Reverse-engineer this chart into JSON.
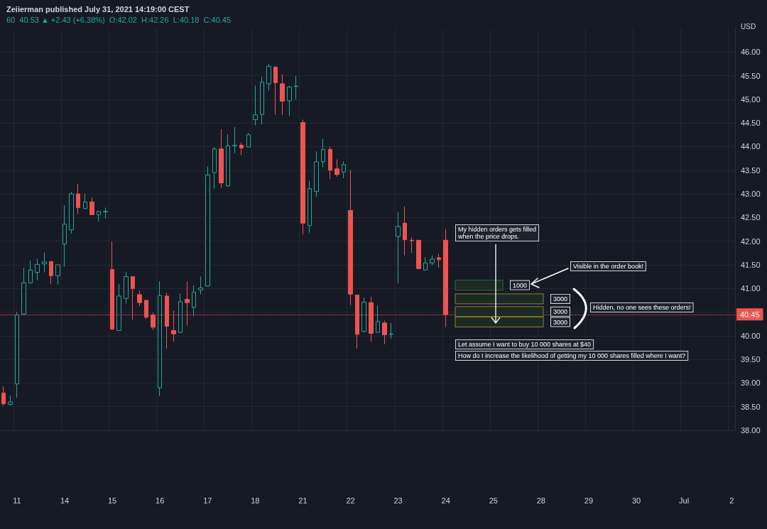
{
  "chart_data": {
    "type": "candlestick",
    "title": "Zeiierman published July 31, 2021 14:19:00 CEST",
    "subtitle": "60  40.53 ▲ +2.43 (+6.38%)  O:42.02  H:42.26  L:40.18  C:40.45",
    "ylabel": "USD",
    "categories": [
      null,
      null,
      "11",
      null,
      null,
      null,
      null,
      null,
      null,
      "14",
      null,
      null,
      null,
      null,
      null,
      null,
      "15",
      null,
      null,
      null,
      null,
      null,
      null,
      "16",
      null,
      null,
      null,
      null,
      null,
      null,
      "17",
      null,
      null,
      null,
      null,
      null,
      null,
      "18",
      null,
      null,
      null,
      null,
      null,
      null,
      "21",
      null,
      null,
      null,
      null,
      null,
      null,
      "22",
      null,
      null,
      null,
      null,
      null,
      null,
      "23",
      null,
      null,
      null,
      null,
      null,
      null,
      "24",
      null,
      null,
      null,
      null,
      null,
      null,
      "25",
      null,
      null,
      null,
      null,
      null,
      null,
      "28",
      null,
      null,
      null,
      null,
      null,
      null,
      "29",
      null,
      null,
      null,
      null,
      null,
      null,
      "30",
      null,
      null,
      null,
      null,
      null,
      null,
      "Jul",
      null,
      null,
      null,
      null,
      null,
      null,
      "2"
    ],
    "ohlc": [
      [
        38.79,
        38.93,
        38.53,
        38.56
      ],
      [
        38.55,
        38.74,
        38.52,
        38.6
      ],
      [
        38.98,
        40.5,
        38.69,
        40.44
      ],
      [
        40.46,
        41.44,
        40.44,
        41.12
      ],
      [
        41.12,
        41.59,
        41.1,
        41.39
      ],
      [
        41.34,
        41.63,
        41.17,
        41.51
      ],
      [
        41.52,
        41.76,
        41.34,
        41.56
      ],
      [
        41.57,
        41.57,
        41.09,
        41.27
      ],
      [
        41.27,
        41.5,
        41.08,
        41.5
      ],
      [
        41.94,
        42.76,
        41.46,
        42.36
      ],
      [
        42.24,
        43.04,
        42.16,
        43.0
      ],
      [
        43.0,
        43.21,
        42.58,
        42.71
      ],
      [
        42.69,
        43.01,
        42.69,
        42.83
      ],
      [
        42.83,
        42.92,
        42.56,
        42.56
      ],
      [
        42.56,
        42.63,
        42.41,
        42.63
      ],
      [
        42.62,
        42.71,
        42.48,
        42.63
      ],
      [
        41.4,
        41.99,
        40.12,
        40.14
      ],
      [
        40.11,
        41.09,
        40.1,
        40.84
      ],
      [
        40.79,
        41.35,
        40.68,
        41.25
      ],
      [
        41.25,
        41.25,
        40.34,
        41.0
      ],
      [
        40.87,
        40.95,
        40.63,
        40.7
      ],
      [
        40.75,
        40.75,
        40.35,
        40.39
      ],
      [
        40.44,
        40.49,
        40.12,
        40.18
      ],
      [
        38.9,
        41.15,
        38.72,
        40.85
      ],
      [
        40.84,
        40.91,
        39.73,
        40.2
      ],
      [
        40.11,
        40.53,
        39.87,
        40.04
      ],
      [
        40.07,
        40.89,
        40.06,
        40.72
      ],
      [
        40.77,
        41.15,
        40.22,
        40.7
      ],
      [
        40.6,
        41.06,
        40.41,
        40.92
      ],
      [
        40.97,
        41.25,
        40.88,
        41.01
      ],
      [
        41.05,
        43.58,
        41.04,
        43.4
      ],
      [
        43.45,
        43.99,
        43.11,
        43.95
      ],
      [
        43.95,
        44.37,
        43.13,
        43.23
      ],
      [
        43.17,
        44.26,
        43.15,
        44.02
      ],
      [
        44.02,
        44.41,
        43.86,
        44.03
      ],
      [
        44.03,
        44.09,
        43.82,
        43.97
      ],
      [
        43.99,
        44.29,
        43.99,
        44.25
      ],
      [
        44.57,
        45.29,
        44.45,
        44.67
      ],
      [
        44.68,
        45.48,
        44.47,
        45.36
      ],
      [
        45.33,
        45.75,
        45.19,
        45.7
      ],
      [
        45.68,
        45.7,
        44.67,
        45.35
      ],
      [
        45.33,
        45.53,
        44.67,
        44.96
      ],
      [
        44.97,
        45.29,
        44.65,
        45.26
      ],
      [
        45.27,
        45.5,
        44.99,
        45.28
      ],
      [
        44.51,
        44.57,
        42.14,
        42.38
      ],
      [
        42.33,
        43.28,
        42.18,
        43.11
      ],
      [
        43.05,
        43.9,
        42.94,
        43.68
      ],
      [
        43.68,
        44.16,
        43.56,
        43.94
      ],
      [
        43.94,
        44.0,
        43.31,
        43.5
      ],
      [
        43.53,
        43.73,
        43.36,
        43.41
      ],
      [
        43.46,
        43.69,
        43.33,
        43.62
      ],
      [
        42.65,
        43.51,
        40.65,
        40.88
      ],
      [
        40.86,
        40.86,
        39.73,
        40.03
      ],
      [
        40.09,
        40.8,
        40.08,
        40.71
      ],
      [
        40.7,
        40.83,
        39.87,
        40.05
      ],
      [
        40.07,
        40.64,
        40.07,
        40.3
      ],
      [
        40.27,
        40.32,
        39.82,
        40.02
      ],
      [
        40.03,
        40.27,
        39.94,
        40.04
      ],
      [
        42.1,
        42.62,
        41.11,
        42.31
      ],
      [
        42.38,
        42.73,
        41.7,
        42.03
      ],
      [
        42.02,
        42.08,
        41.75,
        42.01
      ],
      [
        42.02,
        42.02,
        41.41,
        41.42
      ],
      [
        41.39,
        41.66,
        41.39,
        41.54
      ],
      [
        41.54,
        41.7,
        41.49,
        41.62
      ],
      [
        41.65,
        41.73,
        41.44,
        41.61
      ],
      [
        42.02,
        42.26,
        40.18,
        40.45
      ],
      null,
      null,
      null,
      null,
      null,
      null,
      null,
      null,
      null,
      null,
      null,
      null,
      null,
      null,
      null,
      null,
      null,
      null,
      null,
      null,
      null,
      null,
      null,
      null,
      null,
      null,
      null,
      null,
      null,
      null,
      null,
      null,
      null,
      null,
      null,
      null,
      null,
      null,
      null,
      null,
      null,
      null
    ],
    "colors": [
      "#ef5350",
      "#26a69a",
      "#26a69a",
      "#26a69a",
      "#26a69a",
      "#26a69a",
      "#26a69a",
      "#ef5350",
      "#26a69a",
      "#26a69a",
      "#26a69a",
      "#ef5350",
      "#26a69a",
      "#ef5350",
      "#26a69a",
      "#26a69a",
      "#ef5350",
      "#26a69a",
      "#26a69a",
      "#ef5350",
      "#ef5350",
      "#ef5350",
      "#ef5350",
      "#26a69a",
      "#ef5350",
      "#ef5350",
      "#26a69a",
      "#ef5350",
      "#26a69a",
      "#26a69a",
      "#26a69a",
      "#26a69a",
      "#ef5350",
      "#26a69a",
      "#26a69a",
      "#ef5350",
      "#26a69a",
      "#26a69a",
      "#26a69a",
      "#26a69a",
      "#ef5350",
      "#ef5350",
      "#26a69a",
      "#26a69a",
      "#ef5350",
      "#26a69a",
      "#26a69a",
      "#26a69a",
      "#ef5350",
      "#ef5350",
      "#26a69a",
      "#ef5350",
      "#ef5350",
      "#26a69a",
      "#ef5350",
      "#26a69a",
      "#ef5350",
      "#26a69a",
      "#26a69a",
      "#ef5350",
      "#ef5350",
      "#ef5350",
      "#26a69a",
      "#26a69a",
      "#ef5350",
      "#ef5350",
      null,
      null,
      null,
      null,
      null,
      null,
      null,
      null,
      null,
      null,
      null,
      null,
      null,
      null,
      null,
      null,
      null,
      null,
      null,
      null,
      null,
      null,
      null,
      null,
      null,
      null,
      null,
      null,
      null,
      null,
      null,
      null,
      null,
      null,
      null,
      null,
      null,
      null,
      null,
      null,
      null,
      null
    ],
    "ylim": [
      38,
      46.5
    ],
    "yticks": [
      {
        "value": 38,
        "label": "38.00"
      },
      {
        "value": 38.5,
        "label": "38.50"
      },
      {
        "value": 39,
        "label": "39.00"
      },
      {
        "value": 39.5,
        "label": "39.50"
      },
      {
        "value": 40,
        "label": "40.00"
      },
      {
        "value": 40.5,
        "label": null
      },
      {
        "value": 41,
        "label": "41.00"
      },
      {
        "value": 41.5,
        "label": "41.50"
      },
      {
        "value": 42,
        "label": "42.00"
      },
      {
        "value": 42.5,
        "label": "42.50"
      },
      {
        "value": 43,
        "label": "43.00"
      },
      {
        "value": 43.5,
        "label": "43.50"
      },
      {
        "value": 44,
        "label": "44.00"
      },
      {
        "value": 44.5,
        "label": "44.50"
      },
      {
        "value": 45,
        "label": "45.00"
      },
      {
        "value": 45.5,
        "label": "45.50"
      },
      {
        "value": 46,
        "label": "46.00"
      }
    ],
    "grid": true,
    "ref_lines": [
      {
        "axis": "y",
        "value": 40.45,
        "label": "40.45",
        "color": "#ef5350",
        "line_style": "dotted"
      }
    ],
    "annotations": [
      "My hidden orders gets filled\nwhen the price drops.",
      "Visible in the order book!",
      {
        "text": "1000",
        "y": 41.07
      },
      {
        "text": "3000",
        "y": 40.78
      },
      {
        "text": "3000",
        "y": 40.51
      },
      {
        "text": "3000",
        "y": 40.29
      },
      "Hidden, no one sees these orders!",
      "Let assume I want to buy 10 000 shares at $40",
      "How do I increase the likelihood of getting my 10 000 shares filled where I want?"
    ]
  }
}
